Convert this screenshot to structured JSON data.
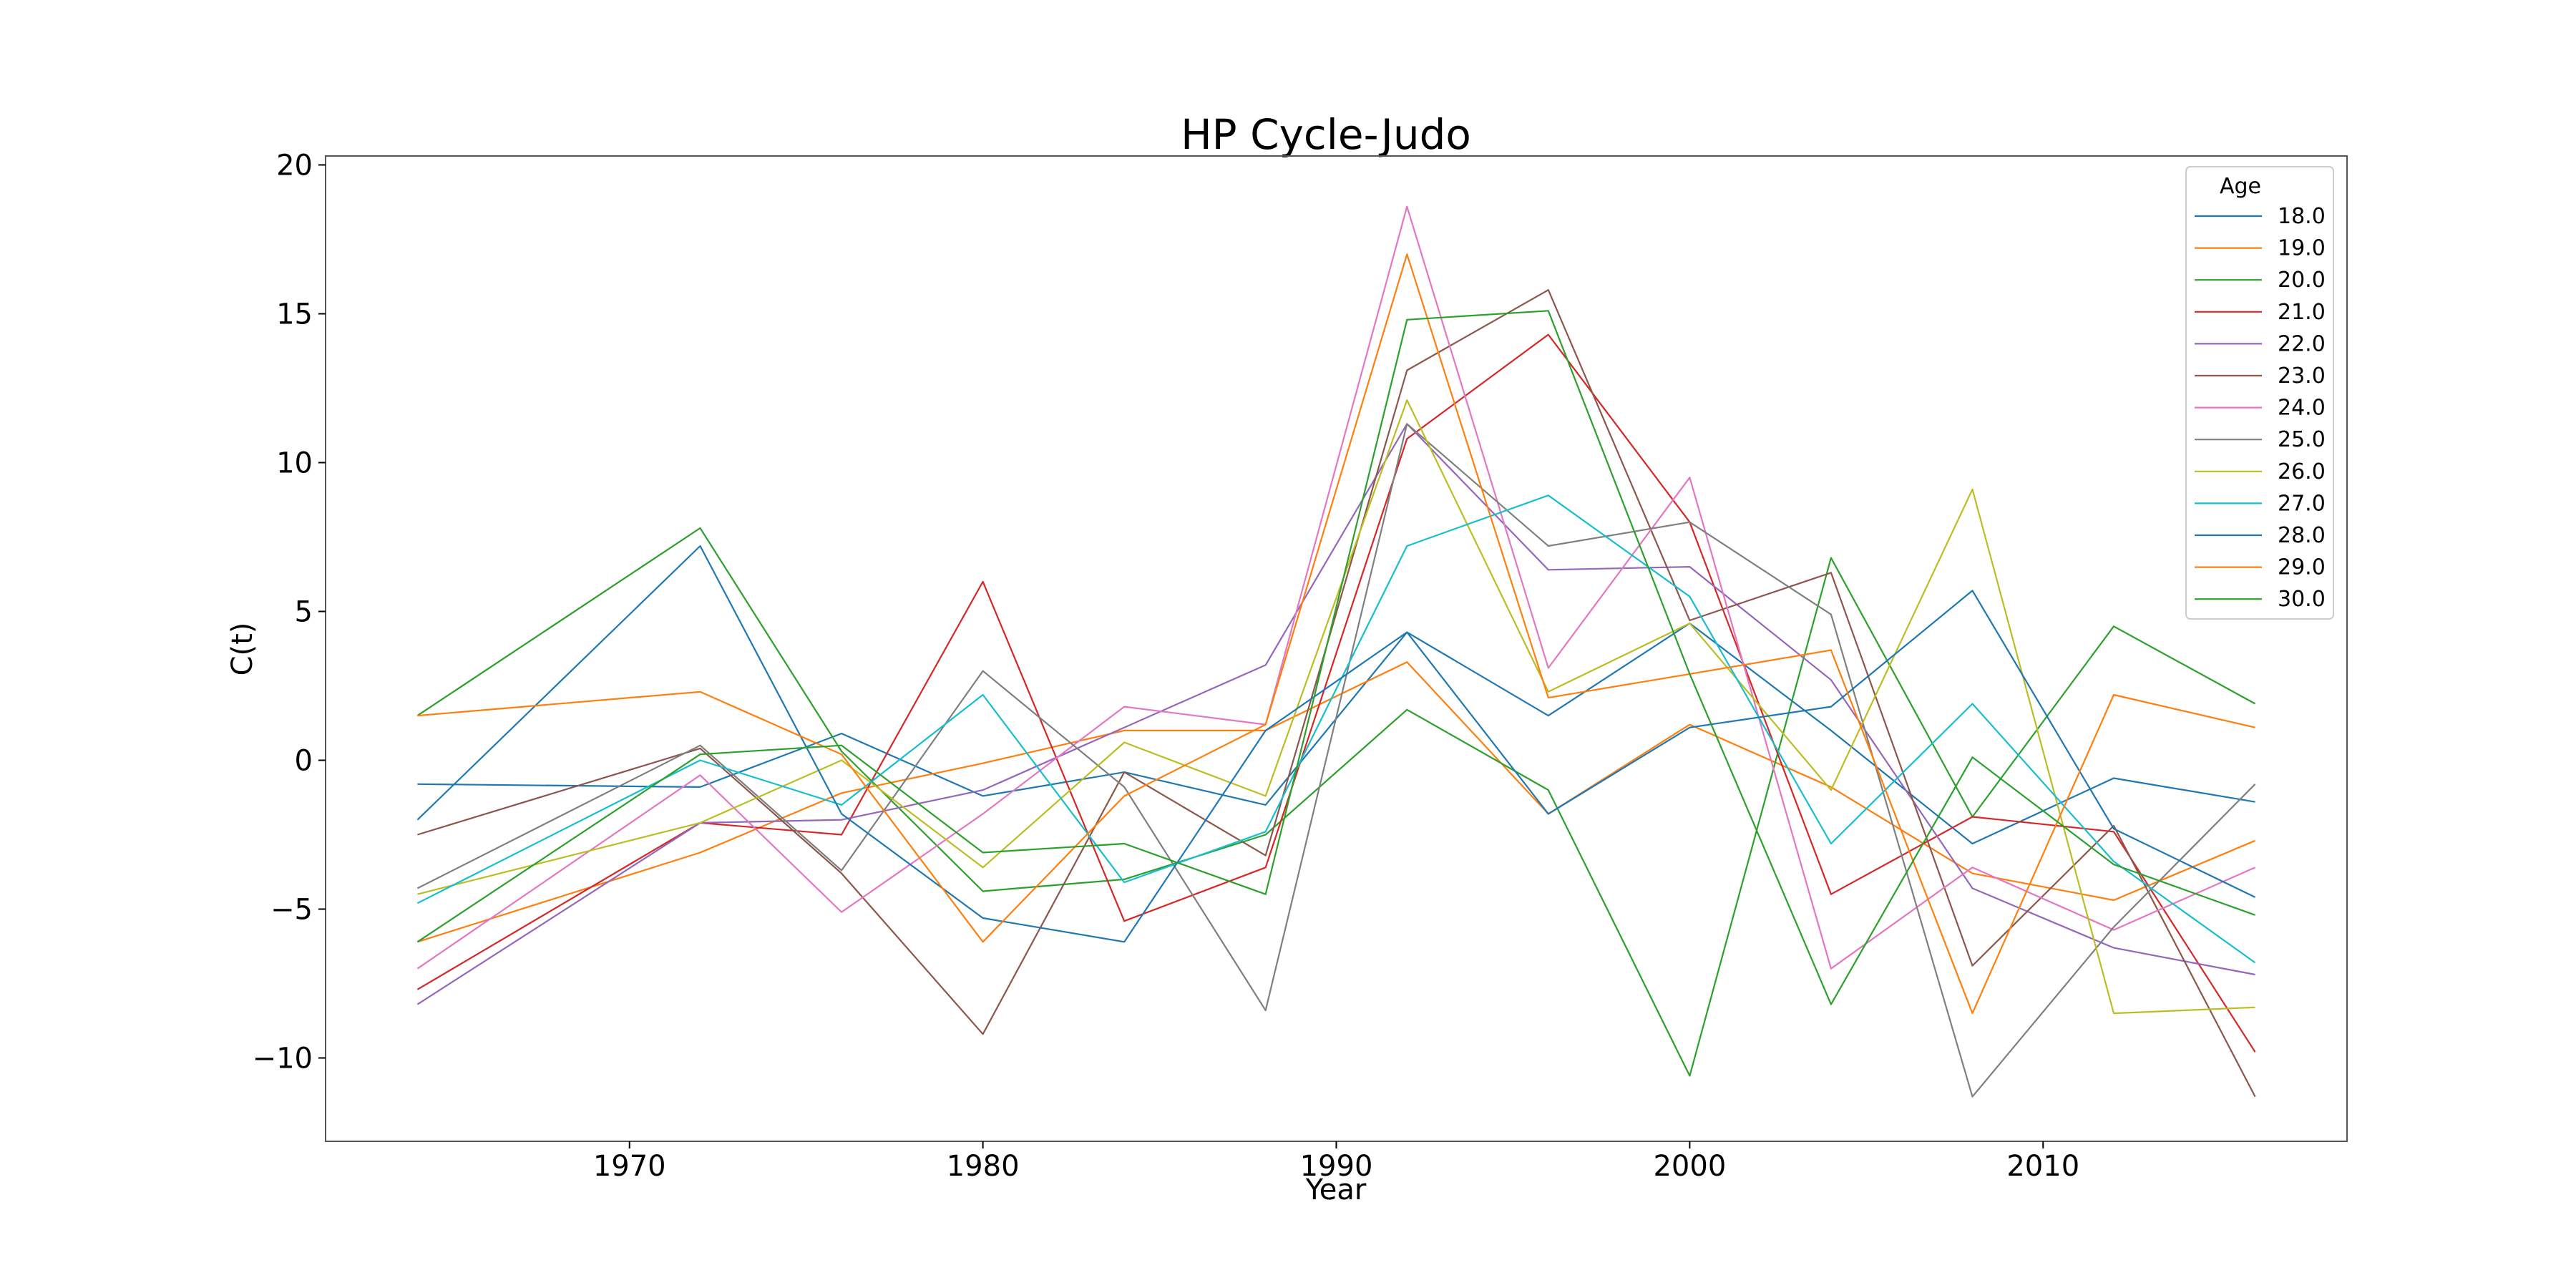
{
  "chart_data": {
    "type": "line",
    "title": "HP Cycle-Judo",
    "xlabel": "Year",
    "ylabel": "C(t)",
    "xlim": [
      1961.4,
      2018.6
    ],
    "ylim": [
      -12.8,
      20.3
    ],
    "xticks": [
      1970,
      1980,
      1990,
      2000,
      2010
    ],
    "yticks": [
      -10,
      -5,
      0,
      5,
      10,
      15,
      20
    ],
    "ytick_labels": [
      "−10",
      "−5",
      "0",
      "5",
      "10",
      "15",
      "20"
    ],
    "grid": false,
    "legend": {
      "title": "Age",
      "placement": "top-right"
    },
    "x": [
      1964,
      1972,
      1976,
      1980,
      1984,
      1988,
      1992,
      1996,
      2000,
      2004,
      2008,
      2012,
      2016
    ],
    "series": [
      {
        "name": "18.0",
        "color": "#1f77b4",
        "values": [
          -0.8,
          -0.9,
          0.9,
          -1.2,
          -0.4,
          -1.5,
          4.3,
          1.5,
          4.6,
          1.0,
          -2.8,
          -0.6,
          -1.4
        ]
      },
      {
        "name": "19.0",
        "color": "#ff7f0e",
        "values": [
          -6.1,
          -3.1,
          -1.1,
          -0.1,
          1.0,
          1.0,
          3.3,
          -1.8,
          1.2,
          -0.9,
          -3.8,
          -4.7,
          -2.7
        ]
      },
      {
        "name": "20.0",
        "color": "#2ca02c",
        "values": [
          1.5,
          7.8,
          0.3,
          -4.4,
          -4.0,
          -2.5,
          1.7,
          -1.0,
          -10.6,
          6.8,
          -1.9,
          4.5,
          1.9
        ]
      },
      {
        "name": "21.0",
        "color": "#d62728",
        "values": [
          -7.7,
          -2.1,
          -2.5,
          6.0,
          -5.4,
          -3.6,
          10.8,
          14.3,
          8.0,
          -4.5,
          -1.9,
          -2.4,
          -9.8
        ]
      },
      {
        "name": "22.0",
        "color": "#9467bd",
        "values": [
          -8.2,
          -2.1,
          -2.0,
          -1.0,
          1.1,
          3.2,
          11.3,
          6.4,
          6.5,
          2.7,
          -4.3,
          -6.3,
          -7.2
        ]
      },
      {
        "name": "23.0",
        "color": "#8c564b",
        "values": [
          -2.5,
          0.4,
          -3.8,
          -9.2,
          -0.4,
          -3.2,
          13.1,
          15.8,
          4.7,
          6.3,
          -6.9,
          -2.2,
          -11.3
        ]
      },
      {
        "name": "24.0",
        "color": "#e377c2",
        "values": [
          -7.0,
          -0.5,
          -5.1,
          -1.8,
          1.8,
          1.2,
          18.6,
          3.1,
          9.5,
          -7.0,
          -3.6,
          -5.7,
          -3.6
        ]
      },
      {
        "name": "25.0",
        "color": "#7f7f7f",
        "values": [
          -4.3,
          0.5,
          -3.7,
          3.0,
          -0.9,
          -8.4,
          11.3,
          7.2,
          8.0,
          4.9,
          -11.3,
          -5.6,
          -0.8
        ]
      },
      {
        "name": "26.0",
        "color": "#bcbd22",
        "values": [
          -4.5,
          -2.1,
          0.0,
          -3.6,
          0.6,
          -1.2,
          12.1,
          2.3,
          4.6,
          -1.0,
          9.1,
          -8.5,
          -8.3
        ]
      },
      {
        "name": "27.0",
        "color": "#17becf",
        "values": [
          -4.8,
          0.0,
          -1.5,
          2.2,
          -4.1,
          -2.4,
          7.2,
          8.9,
          5.5,
          -2.8,
          1.9,
          -3.4,
          -6.8
        ]
      },
      {
        "name": "28.0",
        "color": "#1f77b4",
        "values": [
          -2.0,
          7.2,
          -1.8,
          -5.3,
          -6.1,
          1.0,
          4.3,
          -1.8,
          1.1,
          1.8,
          5.7,
          -2.3,
          -4.6
        ]
      },
      {
        "name": "29.0",
        "color": "#ff7f0e",
        "values": [
          1.5,
          2.3,
          0.2,
          -6.1,
          -1.2,
          1.2,
          17.0,
          2.1,
          2.9,
          3.7,
          -8.5,
          2.2,
          1.1
        ]
      },
      {
        "name": "30.0",
        "color": "#2ca02c",
        "values": [
          -6.1,
          0.2,
          0.5,
          -3.1,
          -2.8,
          -4.5,
          14.8,
          15.1,
          2.9,
          -8.2,
          0.1,
          -3.5,
          -5.2
        ]
      }
    ]
  }
}
